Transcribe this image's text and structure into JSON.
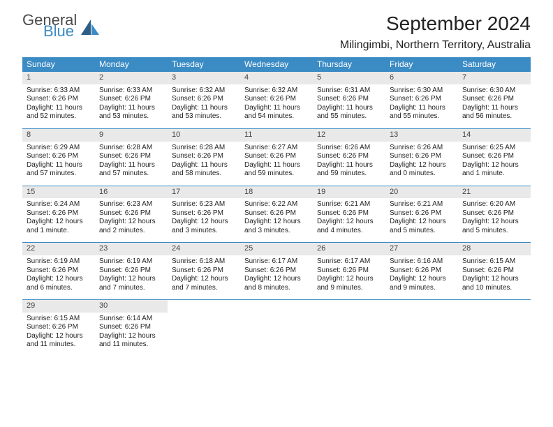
{
  "brand": {
    "part1": "General",
    "part2": "Blue"
  },
  "colors": {
    "header_bg": "#3B8BC4",
    "header_text": "#ffffff",
    "daynum_bg": "#e9e9e9",
    "border": "#3B8BC4",
    "brand_gray": "#4a4a4a",
    "brand_blue": "#3B8BC4"
  },
  "title": "September 2024",
  "location": "Milingimbi, Northern Territory, Australia",
  "weekdays": [
    "Sunday",
    "Monday",
    "Tuesday",
    "Wednesday",
    "Thursday",
    "Friday",
    "Saturday"
  ],
  "weeks": [
    [
      {
        "n": "1",
        "sr": "Sunrise: 6:33 AM",
        "ss": "Sunset: 6:26 PM",
        "d1": "Daylight: 11 hours",
        "d2": "and 52 minutes."
      },
      {
        "n": "2",
        "sr": "Sunrise: 6:33 AM",
        "ss": "Sunset: 6:26 PM",
        "d1": "Daylight: 11 hours",
        "d2": "and 53 minutes."
      },
      {
        "n": "3",
        "sr": "Sunrise: 6:32 AM",
        "ss": "Sunset: 6:26 PM",
        "d1": "Daylight: 11 hours",
        "d2": "and 53 minutes."
      },
      {
        "n": "4",
        "sr": "Sunrise: 6:32 AM",
        "ss": "Sunset: 6:26 PM",
        "d1": "Daylight: 11 hours",
        "d2": "and 54 minutes."
      },
      {
        "n": "5",
        "sr": "Sunrise: 6:31 AM",
        "ss": "Sunset: 6:26 PM",
        "d1": "Daylight: 11 hours",
        "d2": "and 55 minutes."
      },
      {
        "n": "6",
        "sr": "Sunrise: 6:30 AM",
        "ss": "Sunset: 6:26 PM",
        "d1": "Daylight: 11 hours",
        "d2": "and 55 minutes."
      },
      {
        "n": "7",
        "sr": "Sunrise: 6:30 AM",
        "ss": "Sunset: 6:26 PM",
        "d1": "Daylight: 11 hours",
        "d2": "and 56 minutes."
      }
    ],
    [
      {
        "n": "8",
        "sr": "Sunrise: 6:29 AM",
        "ss": "Sunset: 6:26 PM",
        "d1": "Daylight: 11 hours",
        "d2": "and 57 minutes."
      },
      {
        "n": "9",
        "sr": "Sunrise: 6:28 AM",
        "ss": "Sunset: 6:26 PM",
        "d1": "Daylight: 11 hours",
        "d2": "and 57 minutes."
      },
      {
        "n": "10",
        "sr": "Sunrise: 6:28 AM",
        "ss": "Sunset: 6:26 PM",
        "d1": "Daylight: 11 hours",
        "d2": "and 58 minutes."
      },
      {
        "n": "11",
        "sr": "Sunrise: 6:27 AM",
        "ss": "Sunset: 6:26 PM",
        "d1": "Daylight: 11 hours",
        "d2": "and 59 minutes."
      },
      {
        "n": "12",
        "sr": "Sunrise: 6:26 AM",
        "ss": "Sunset: 6:26 PM",
        "d1": "Daylight: 11 hours",
        "d2": "and 59 minutes."
      },
      {
        "n": "13",
        "sr": "Sunrise: 6:26 AM",
        "ss": "Sunset: 6:26 PM",
        "d1": "Daylight: 12 hours",
        "d2": "and 0 minutes."
      },
      {
        "n": "14",
        "sr": "Sunrise: 6:25 AM",
        "ss": "Sunset: 6:26 PM",
        "d1": "Daylight: 12 hours",
        "d2": "and 1 minute."
      }
    ],
    [
      {
        "n": "15",
        "sr": "Sunrise: 6:24 AM",
        "ss": "Sunset: 6:26 PM",
        "d1": "Daylight: 12 hours",
        "d2": "and 1 minute."
      },
      {
        "n": "16",
        "sr": "Sunrise: 6:23 AM",
        "ss": "Sunset: 6:26 PM",
        "d1": "Daylight: 12 hours",
        "d2": "and 2 minutes."
      },
      {
        "n": "17",
        "sr": "Sunrise: 6:23 AM",
        "ss": "Sunset: 6:26 PM",
        "d1": "Daylight: 12 hours",
        "d2": "and 3 minutes."
      },
      {
        "n": "18",
        "sr": "Sunrise: 6:22 AM",
        "ss": "Sunset: 6:26 PM",
        "d1": "Daylight: 12 hours",
        "d2": "and 3 minutes."
      },
      {
        "n": "19",
        "sr": "Sunrise: 6:21 AM",
        "ss": "Sunset: 6:26 PM",
        "d1": "Daylight: 12 hours",
        "d2": "and 4 minutes."
      },
      {
        "n": "20",
        "sr": "Sunrise: 6:21 AM",
        "ss": "Sunset: 6:26 PM",
        "d1": "Daylight: 12 hours",
        "d2": "and 5 minutes."
      },
      {
        "n": "21",
        "sr": "Sunrise: 6:20 AM",
        "ss": "Sunset: 6:26 PM",
        "d1": "Daylight: 12 hours",
        "d2": "and 5 minutes."
      }
    ],
    [
      {
        "n": "22",
        "sr": "Sunrise: 6:19 AM",
        "ss": "Sunset: 6:26 PM",
        "d1": "Daylight: 12 hours",
        "d2": "and 6 minutes."
      },
      {
        "n": "23",
        "sr": "Sunrise: 6:19 AM",
        "ss": "Sunset: 6:26 PM",
        "d1": "Daylight: 12 hours",
        "d2": "and 7 minutes."
      },
      {
        "n": "24",
        "sr": "Sunrise: 6:18 AM",
        "ss": "Sunset: 6:26 PM",
        "d1": "Daylight: 12 hours",
        "d2": "and 7 minutes."
      },
      {
        "n": "25",
        "sr": "Sunrise: 6:17 AM",
        "ss": "Sunset: 6:26 PM",
        "d1": "Daylight: 12 hours",
        "d2": "and 8 minutes."
      },
      {
        "n": "26",
        "sr": "Sunrise: 6:17 AM",
        "ss": "Sunset: 6:26 PM",
        "d1": "Daylight: 12 hours",
        "d2": "and 9 minutes."
      },
      {
        "n": "27",
        "sr": "Sunrise: 6:16 AM",
        "ss": "Sunset: 6:26 PM",
        "d1": "Daylight: 12 hours",
        "d2": "and 9 minutes."
      },
      {
        "n": "28",
        "sr": "Sunrise: 6:15 AM",
        "ss": "Sunset: 6:26 PM",
        "d1": "Daylight: 12 hours",
        "d2": "and 10 minutes."
      }
    ],
    [
      {
        "n": "29",
        "sr": "Sunrise: 6:15 AM",
        "ss": "Sunset: 6:26 PM",
        "d1": "Daylight: 12 hours",
        "d2": "and 11 minutes."
      },
      {
        "n": "30",
        "sr": "Sunrise: 6:14 AM",
        "ss": "Sunset: 6:26 PM",
        "d1": "Daylight: 12 hours",
        "d2": "and 11 minutes."
      },
      null,
      null,
      null,
      null,
      null
    ]
  ]
}
